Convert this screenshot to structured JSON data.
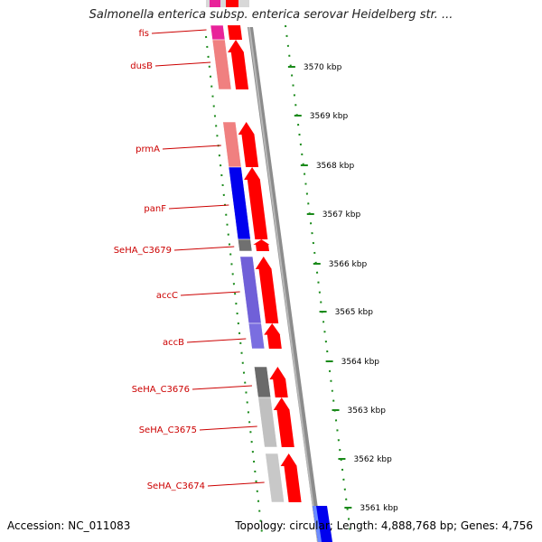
{
  "title": "Salmonella enterica subsp. enterica serovar Heidelberg str. ...",
  "accession": "Accession: NC_011083",
  "summary": "Topology: circular; Length: 4,888,768 bp; Genes: 4,756",
  "colors": {
    "forward": "#ff0000",
    "backbone": "#8c8c8c",
    "gene_label": "#cc0000",
    "tick": "#1a8a1a",
    "scale_text": "#000000"
  },
  "scale_ticks": [
    {
      "label": "3570 kbp",
      "kbp": 3570
    },
    {
      "label": "3569 kbp",
      "kbp": 3569
    },
    {
      "label": "3568 kbp",
      "kbp": 3568
    },
    {
      "label": "3567 kbp",
      "kbp": 3567
    },
    {
      "label": "3566 kbp",
      "kbp": 3566
    },
    {
      "label": "3565 kbp",
      "kbp": 3565
    },
    {
      "label": "3564 kbp",
      "kbp": 3564
    },
    {
      "label": "3563 kbp",
      "kbp": 3563
    },
    {
      "label": "3562 kbp",
      "kbp": 3562
    },
    {
      "label": "3561 kbp",
      "kbp": 3561
    }
  ],
  "genes": [
    {
      "name": "fis",
      "color": "#e8239a"
    },
    {
      "name": "dusB",
      "color": "#f08080"
    },
    {
      "name": "prmA",
      "color": "#f08080"
    },
    {
      "name": "panF",
      "color": "#0000ee"
    },
    {
      "name": "SeHA_C3679",
      "color": "#707070"
    },
    {
      "name": "accC",
      "color": "#7060d8"
    },
    {
      "name": "accB",
      "color": "#7a6ee0"
    },
    {
      "name": "SeHA_C3676",
      "color": "#6a6a6a"
    },
    {
      "name": "SeHA_C3675",
      "color": "#c0c0c0"
    },
    {
      "name": "SeHA_C3674",
      "color": "#c8c8c8"
    }
  ]
}
